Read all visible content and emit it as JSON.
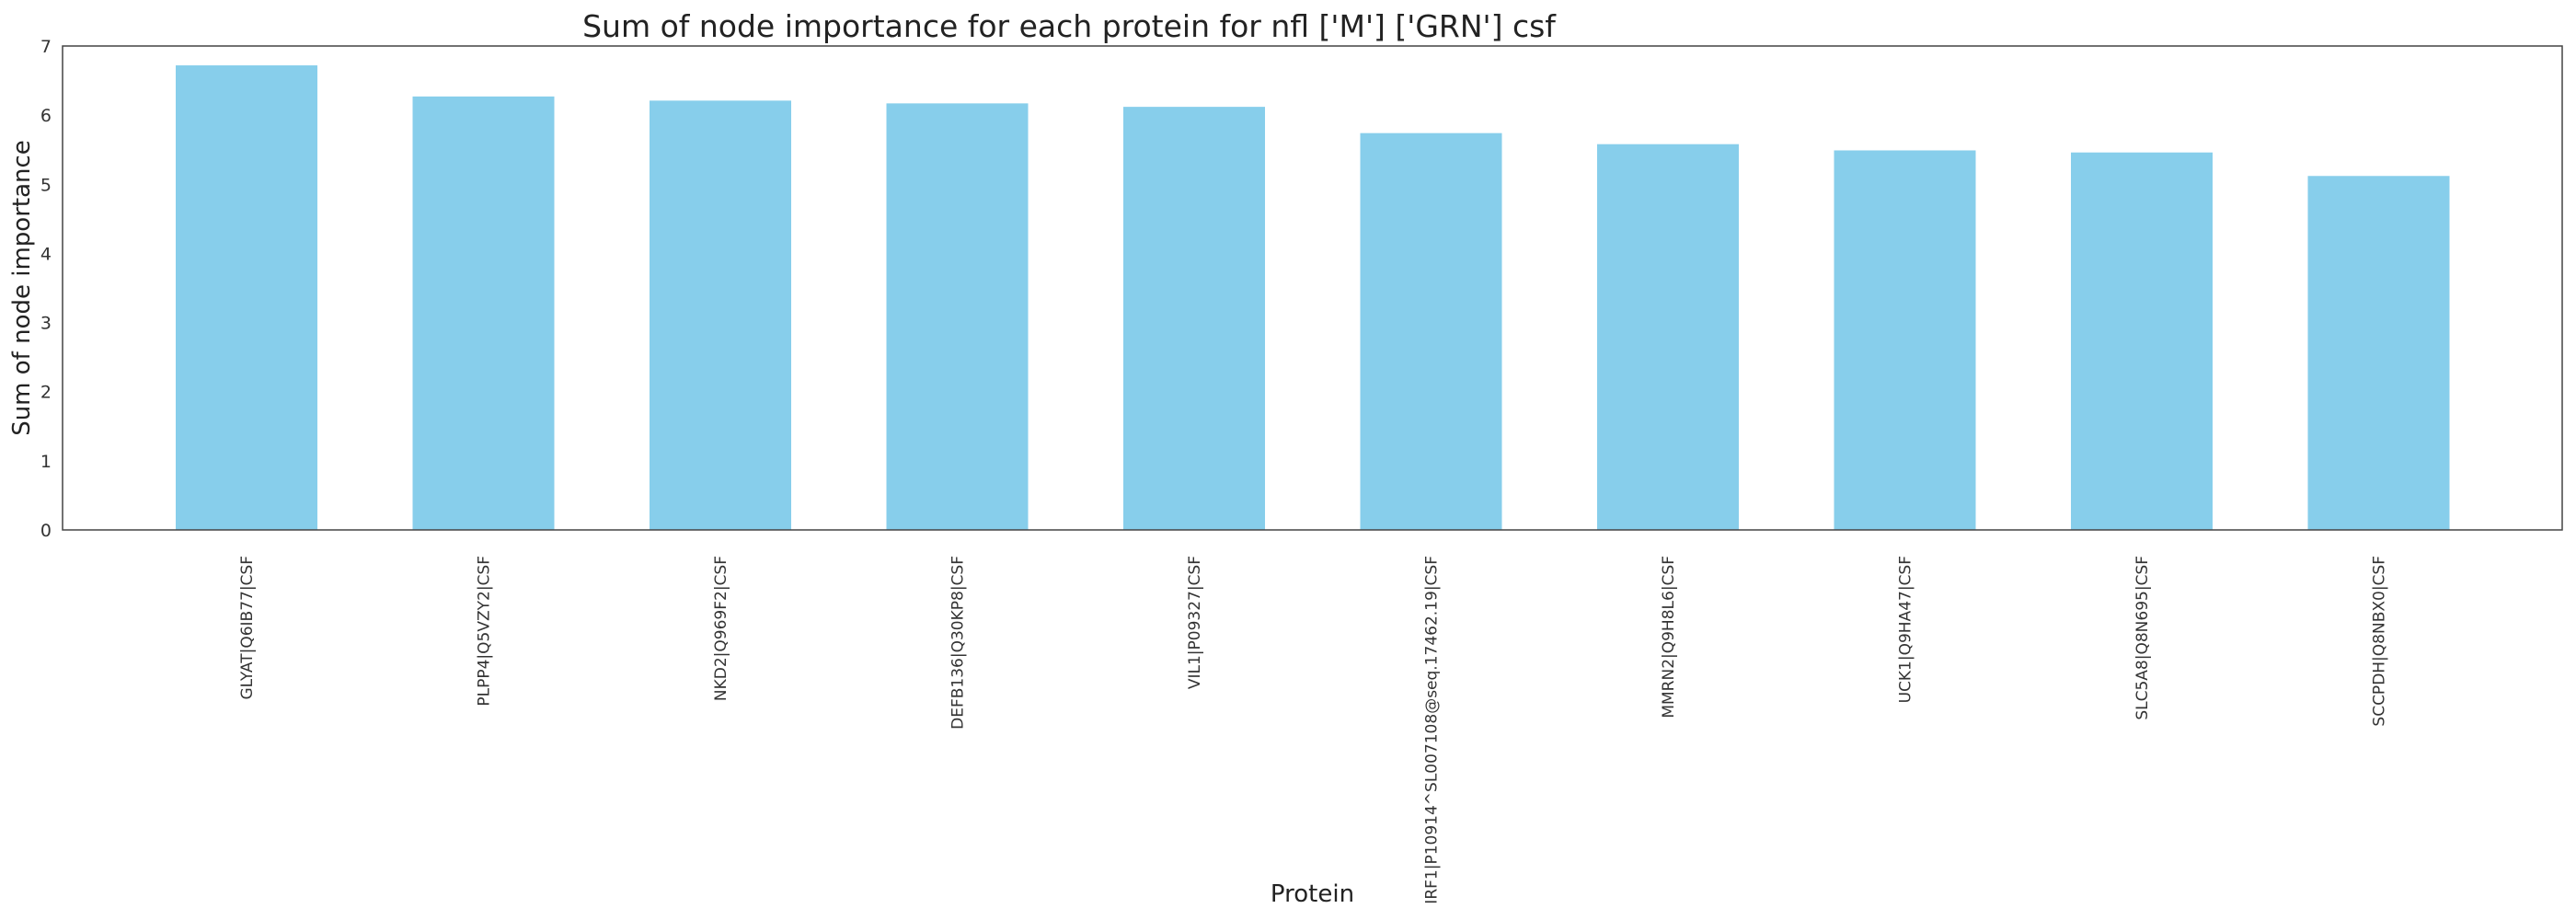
{
  "chart_data": {
    "type": "bar",
    "title": "Sum of node importance for each protein for nfl ['M'] ['GRN'] csf",
    "xlabel": "Protein",
    "ylabel": "Sum of node importance",
    "ylim": [
      0,
      7
    ],
    "yticks": [
      "0",
      "1",
      "2",
      "3",
      "4",
      "5",
      "6",
      "7"
    ],
    "grid": false,
    "bar_color": "#87CEEB",
    "categories": [
      "GLYAT|Q6IB77|CSF",
      "PLPP4|Q5VZY2|CSF",
      "NKD2|Q969F2|CSF",
      "DEFB136|Q30KP8|CSF",
      "VIL1|P09327|CSF",
      "IRF1|P10914^SL007108@seq.17462.19|CSF",
      "MMRN2|Q9H8L6|CSF",
      "UCK1|Q9HA47|CSF",
      "SLC5A8|Q8N695|CSF",
      "SCCPDH|Q8NBX0|CSF"
    ],
    "values": [
      6.72,
      6.27,
      6.21,
      6.17,
      6.12,
      5.74,
      5.58,
      5.49,
      5.46,
      5.12
    ]
  }
}
